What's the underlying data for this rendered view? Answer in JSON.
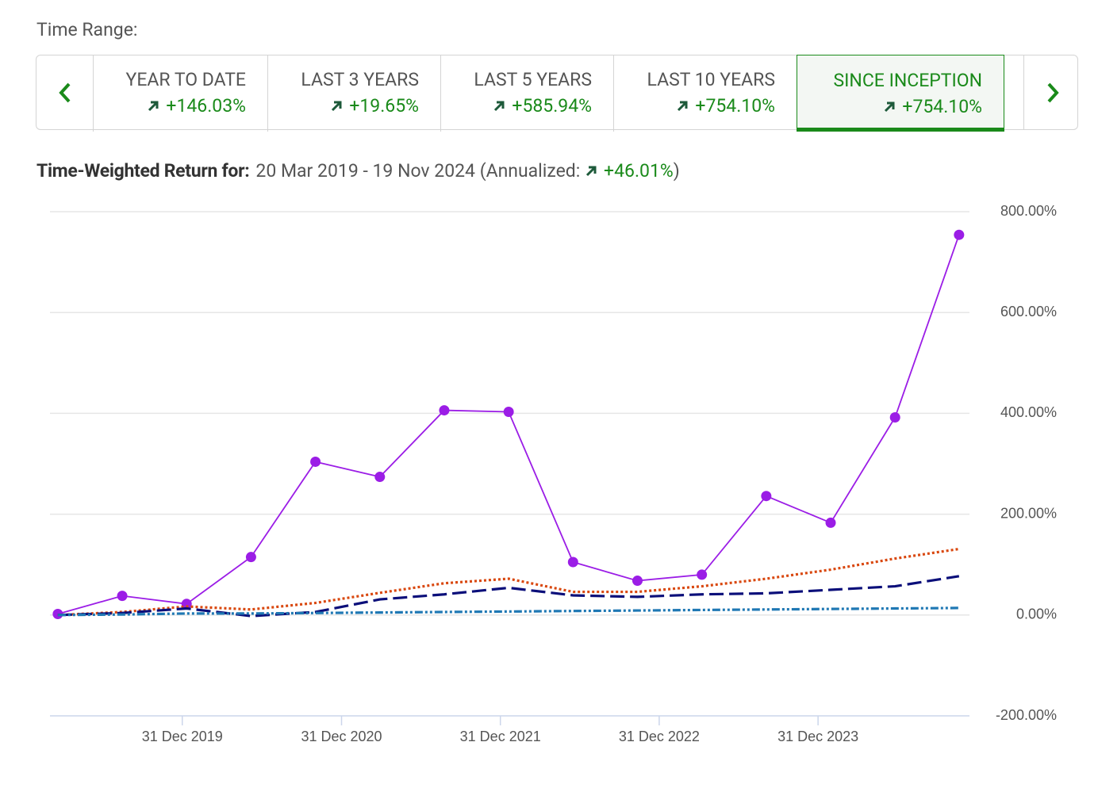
{
  "time_range_label": "Time Range:",
  "tabs": [
    {
      "label": "YEAR TO DATE",
      "value": "+146.03%"
    },
    {
      "label": "LAST 3 YEARS",
      "value": "+19.65%"
    },
    {
      "label": "LAST 5 YEARS",
      "value": "+585.94%"
    },
    {
      "label": "LAST 10 YEARS",
      "value": "+754.10%"
    },
    {
      "label": "SINCE INCEPTION",
      "value": "+754.10%",
      "selected": true
    }
  ],
  "twr_label": "Time-Weighted Return for:",
  "twr_range": "20 Mar 2019 - 19 Nov 2024",
  "annualized_label": "(Annualized:",
  "annualized_value": "+46.01%",
  "annualized_close": ")",
  "chart_data": {
    "type": "line",
    "x": [
      "2019-03-20",
      "2019-08-15",
      "2020-01-10",
      "2020-06-06",
      "2020-11-01",
      "2021-03-29",
      "2021-08-24",
      "2022-01-19",
      "2022-06-16",
      "2022-11-11",
      "2023-04-08",
      "2023-09-03",
      "2024-01-29",
      "2024-06-25",
      "2024-11-19"
    ],
    "xlim": [
      "2019-03-02",
      "2024-12-13"
    ],
    "xticks": [
      {
        "value": "2019-12-31",
        "label": "31 Dec 2019"
      },
      {
        "value": "2020-12-31",
        "label": "31 Dec 2020"
      },
      {
        "value": "2021-12-31",
        "label": "31 Dec 2021"
      },
      {
        "value": "2022-12-31",
        "label": "31 Dec 2022"
      },
      {
        "value": "2023-12-31",
        "label": "31 Dec 2023"
      }
    ],
    "ylim": [
      -200,
      800
    ],
    "yticks": [
      {
        "value": -200,
        "label": "-200.00%"
      },
      {
        "value": 0,
        "label": "0.00%"
      },
      {
        "value": 200,
        "label": "200.00%"
      },
      {
        "value": 400,
        "label": "400.00%"
      },
      {
        "value": 600,
        "label": "600.00%"
      },
      {
        "value": 800,
        "label": "800.00%"
      }
    ],
    "grid": true,
    "series": [
      {
        "color": "#9b1de6",
        "dash": "solid",
        "markers": true,
        "values": [
          2,
          38,
          22,
          115,
          304,
          274,
          406,
          403,
          105,
          68,
          80,
          236,
          183,
          392,
          754.1
        ]
      },
      {
        "color": "#d9480f",
        "dash": "dotted",
        "markers": false,
        "values": [
          0,
          6,
          17,
          11,
          24,
          44,
          63,
          72,
          46,
          46,
          57,
          72,
          90,
          112,
          131
        ]
      },
      {
        "color": "#0b0f7a",
        "dash": "dashed",
        "markers": false,
        "values": [
          0,
          4,
          13,
          -2,
          6,
          31,
          41,
          54,
          39,
          36,
          41,
          43,
          50,
          57,
          77
        ]
      },
      {
        "color": "#1f78b4",
        "dash": "dashdot",
        "markers": false,
        "values": [
          0,
          1,
          3,
          3,
          4,
          5,
          6,
          7,
          8,
          9,
          10,
          11,
          12,
          13,
          14
        ]
      }
    ]
  }
}
